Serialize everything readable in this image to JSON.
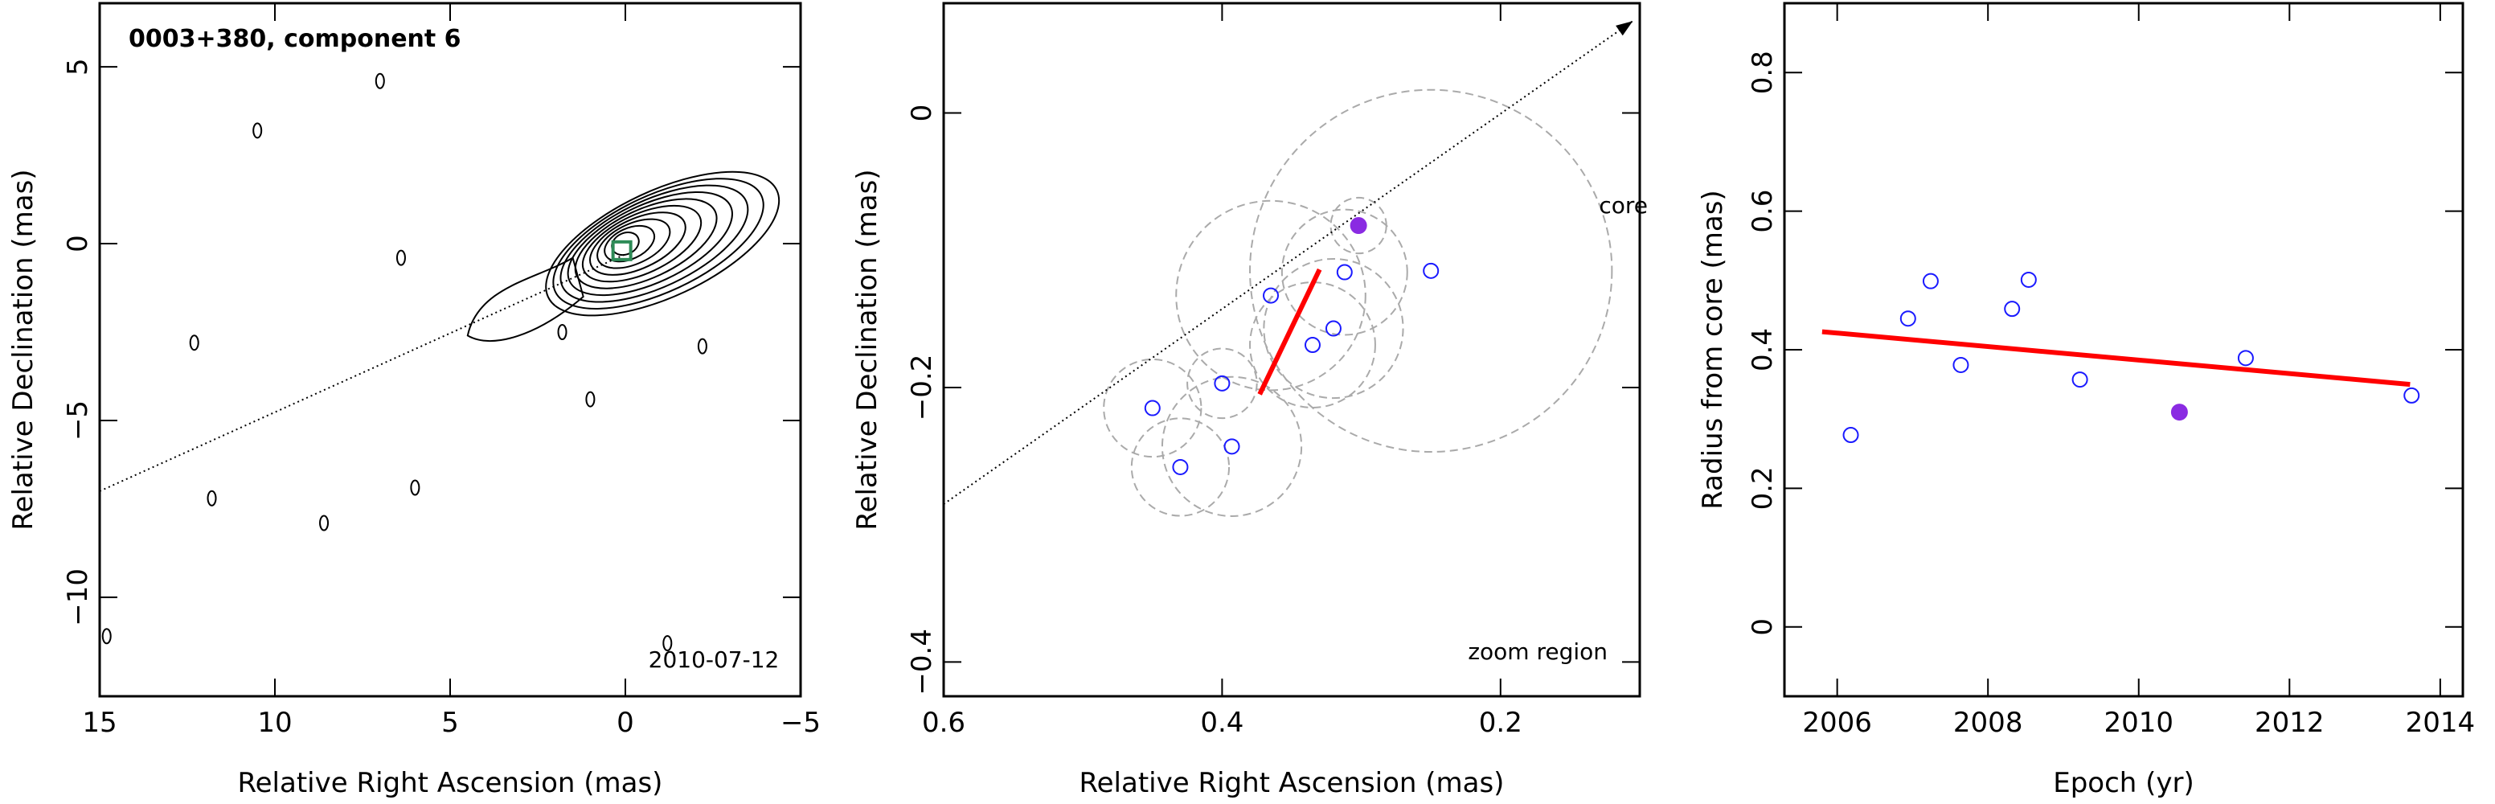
{
  "chart_data": [
    {
      "type": "contour",
      "title": "0003+380, component 6",
      "xlabel": "Relative Right Ascension (mas)",
      "ylabel": "Relative Declination (mas)",
      "xlim": [
        15,
        -5
      ],
      "ylim": [
        -12.8,
        6.8
      ],
      "xticks": [
        15,
        10,
        5,
        0,
        -5
      ],
      "yticks": [
        5,
        0,
        -5,
        -10
      ],
      "xtick_labels": [
        "15",
        "10",
        "5",
        "0",
        "−5"
      ],
      "ytick_labels": [
        "5",
        "0",
        "−5",
        "−10"
      ],
      "date": "2010-07-12",
      "core_marker": [
        0.1,
        -0.2
      ],
      "jet_line": [
        [
          15,
          -7.0
        ],
        [
          0,
          -0.3
        ]
      ],
      "contour_levels": 10
    },
    {
      "type": "scatter",
      "xlabel": "Relative Right Ascension (mas)",
      "ylabel": "Relative Declination (mas)",
      "xlim": [
        0.6,
        0.1
      ],
      "ylim": [
        -0.425,
        0.08
      ],
      "xticks": [
        0.6,
        0.4,
        0.2
      ],
      "yticks": [
        0,
        -0.2,
        -0.4
      ],
      "xtick_labels": [
        "0.6",
        "0.4",
        "0.2"
      ],
      "ytick_labels": [
        "0",
        "−0.2",
        "−0.4"
      ],
      "annotation_core": "core",
      "annotation_zoom": "zoom region",
      "points": [
        {
          "x": 0.45,
          "y": -0.215,
          "r": 0.035
        },
        {
          "x": 0.43,
          "y": -0.258,
          "r": 0.035
        },
        {
          "x": 0.4,
          "y": -0.197,
          "r": 0.025
        },
        {
          "x": 0.393,
          "y": -0.243,
          "r": 0.05
        },
        {
          "x": 0.365,
          "y": -0.133,
          "r": 0.068
        },
        {
          "x": 0.335,
          "y": -0.169,
          "r": 0.045
        },
        {
          "x": 0.32,
          "y": -0.157,
          "r": 0.05
        },
        {
          "x": 0.312,
          "y": -0.116,
          "r": 0.045
        },
        {
          "x": 0.25,
          "y": -0.115,
          "r": 0.13
        }
      ],
      "highlight_point": {
        "x": 0.302,
        "y": -0.082,
        "r": 0.02
      },
      "fit_line": [
        [
          0.373,
          -0.205
        ],
        [
          0.33,
          -0.114
        ]
      ],
      "jet_line": [
        [
          0.6,
          -0.285
        ],
        [
          0.105,
          0.067
        ]
      ]
    },
    {
      "type": "scatter",
      "xlabel": "Epoch (yr)",
      "ylabel": "Radius from core (mas)",
      "xlim": [
        2005.3,
        2014.3
      ],
      "ylim": [
        -0.1,
        0.9
      ],
      "xticks": [
        2006,
        2008,
        2010,
        2012,
        2014
      ],
      "yticks": [
        0,
        0.2,
        0.4,
        0.6,
        0.8
      ],
      "xtick_labels": [
        "2006",
        "2008",
        "2010",
        "2012",
        "2014"
      ],
      "ytick_labels": [
        "0",
        "0.2",
        "0.4",
        "0.6",
        "0.8"
      ],
      "points": [
        {
          "x": 2006.18,
          "y": 0.277
        },
        {
          "x": 2006.94,
          "y": 0.445
        },
        {
          "x": 2007.24,
          "y": 0.499
        },
        {
          "x": 2007.64,
          "y": 0.378
        },
        {
          "x": 2008.32,
          "y": 0.459
        },
        {
          "x": 2008.54,
          "y": 0.501
        },
        {
          "x": 2009.22,
          "y": 0.357
        },
        {
          "x": 2011.42,
          "y": 0.388
        },
        {
          "x": 2013.62,
          "y": 0.334
        }
      ],
      "highlight_point": {
        "x": 2010.54,
        "y": 0.31
      },
      "fit_line": [
        [
          2005.8,
          0.426
        ],
        [
          2013.6,
          0.35
        ]
      ]
    }
  ],
  "colors": {
    "marker_open": "#1a1aff",
    "marker_filled": "#8a2be2",
    "fit_line": "#ff0000",
    "circles": "#aaaaaa",
    "core_marker": "#2e8b57"
  }
}
